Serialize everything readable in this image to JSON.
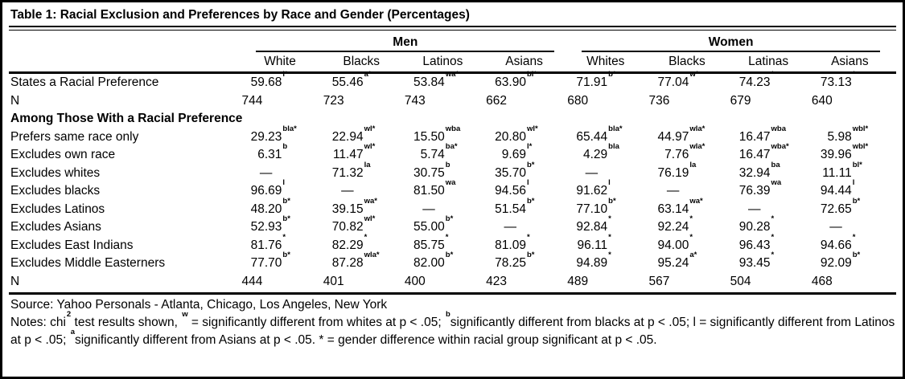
{
  "title": "Table 1: Racial Exclusion and Preferences by Race and Gender (Percentages)",
  "header": {
    "groups": [
      "Men",
      "Women"
    ],
    "columns": [
      "White",
      "Blacks",
      "Latinos",
      "Asians",
      "Whites",
      "Blacks",
      "Latinas",
      "Asians"
    ]
  },
  "rows": [
    {
      "type": "data",
      "label": "States a Racial Preference",
      "cells": [
        {
          "v": "59.68",
          "s": "l*"
        },
        {
          "v": "55.46",
          "s": "a*"
        },
        {
          "v": "53.84",
          "s": "wa*"
        },
        {
          "v": "63.90",
          "s": "bl*"
        },
        {
          "v": "71.91",
          "s": "b*"
        },
        {
          "v": "77.04",
          "s": "w*"
        },
        {
          "v": "74.23",
          "s": "*"
        },
        {
          "v": "73.13",
          "s": "*"
        }
      ]
    },
    {
      "type": "n",
      "label": "N",
      "cells": [
        {
          "v": "744",
          "s": ""
        },
        {
          "v": "723",
          "s": ""
        },
        {
          "v": "743",
          "s": ""
        },
        {
          "v": "662",
          "s": ""
        },
        {
          "v": "680",
          "s": ""
        },
        {
          "v": "736",
          "s": ""
        },
        {
          "v": "679",
          "s": ""
        },
        {
          "v": "640",
          "s": ""
        }
      ]
    },
    {
      "type": "section",
      "label": "Among Those With a Racial Preference"
    },
    {
      "type": "data",
      "label": "Prefers same race only",
      "cells": [
        {
          "v": "29.23",
          "s": "bla*"
        },
        {
          "v": "22.94",
          "s": "wl*"
        },
        {
          "v": "15.50",
          "s": "wba"
        },
        {
          "v": "20.80",
          "s": "wl*"
        },
        {
          "v": "65.44",
          "s": "bla*"
        },
        {
          "v": "44.97",
          "s": "wla*"
        },
        {
          "v": "16.47",
          "s": "wba"
        },
        {
          "v": "5.98",
          "s": "wbl*"
        }
      ]
    },
    {
      "type": "data",
      "label": "Excludes own race",
      "cells": [
        {
          "v": "6.31",
          "s": "b"
        },
        {
          "v": "11.47",
          "s": "wl*"
        },
        {
          "v": "5.74",
          "s": "ba*"
        },
        {
          "v": "9.69",
          "s": "l*"
        },
        {
          "v": "4.29",
          "s": "bla"
        },
        {
          "v": "7.76",
          "s": "wla*"
        },
        {
          "v": "16.47",
          "s": "wba*"
        },
        {
          "v": "39.96",
          "s": "wbl*"
        }
      ]
    },
    {
      "type": "data",
      "label": "Excludes whites",
      "cells": [
        {
          "v": "—",
          "s": ""
        },
        {
          "v": "71.32",
          "s": "la"
        },
        {
          "v": "30.75",
          "s": "b"
        },
        {
          "v": "35.70",
          "s": "b*"
        },
        {
          "v": "—",
          "s": ""
        },
        {
          "v": "76.19",
          "s": "la"
        },
        {
          "v": "32.94",
          "s": "ba"
        },
        {
          "v": "11.11",
          "s": "bl*"
        }
      ]
    },
    {
      "type": "data",
      "label": "Excludes blacks",
      "cells": [
        {
          "v": "96.69",
          "s": "l"
        },
        {
          "v": "—",
          "s": ""
        },
        {
          "v": "81.50",
          "s": "wa"
        },
        {
          "v": "94.56",
          "s": "l"
        },
        {
          "v": "91.62",
          "s": "l"
        },
        {
          "v": "—",
          "s": ""
        },
        {
          "v": "76.39",
          "s": "wa"
        },
        {
          "v": "94.44",
          "s": "l"
        }
      ]
    },
    {
      "type": "data",
      "label": "Excludes Latinos",
      "cells": [
        {
          "v": "48.20",
          "s": "b*"
        },
        {
          "v": "39.15",
          "s": "wa*"
        },
        {
          "v": "—",
          "s": ""
        },
        {
          "v": "51.54",
          "s": "b*"
        },
        {
          "v": "77.10",
          "s": "b*"
        },
        {
          "v": "63.14",
          "s": "wa*"
        },
        {
          "v": "—",
          "s": ""
        },
        {
          "v": "72.65",
          "s": "b*"
        }
      ]
    },
    {
      "type": "data",
      "label": "Excludes Asians",
      "cells": [
        {
          "v": "52.93",
          "s": "b*"
        },
        {
          "v": "70.82",
          "s": "wl*"
        },
        {
          "v": "55.00",
          "s": "b*"
        },
        {
          "v": "—",
          "s": ""
        },
        {
          "v": "92.84",
          "s": "*"
        },
        {
          "v": "92.24",
          "s": "*"
        },
        {
          "v": "90.28",
          "s": "*"
        },
        {
          "v": "—",
          "s": ""
        }
      ]
    },
    {
      "type": "data",
      "label": "Excludes East Indians",
      "cells": [
        {
          "v": "81.76",
          "s": "*"
        },
        {
          "v": "82.29",
          "s": "*"
        },
        {
          "v": "85.75",
          "s": "*"
        },
        {
          "v": "81.09",
          "s": "*"
        },
        {
          "v": "96.11",
          "s": "*"
        },
        {
          "v": "94.00",
          "s": "*"
        },
        {
          "v": "96.43",
          "s": "*"
        },
        {
          "v": "94.66",
          "s": "*"
        }
      ]
    },
    {
      "type": "data",
      "label": "Excludes Middle Easterners",
      "cells": [
        {
          "v": "77.70",
          "s": "b*"
        },
        {
          "v": "87.28",
          "s": "wla*"
        },
        {
          "v": "82.00",
          "s": "b*"
        },
        {
          "v": "78.25",
          "s": "b*"
        },
        {
          "v": "94.89",
          "s": "*"
        },
        {
          "v": "95.24",
          "s": "a*"
        },
        {
          "v": "93.45",
          "s": "*"
        },
        {
          "v": "92.09",
          "s": "b*"
        }
      ]
    },
    {
      "type": "n",
      "label": "N",
      "cells": [
        {
          "v": "444",
          "s": ""
        },
        {
          "v": "401",
          "s": ""
        },
        {
          "v": "400",
          "s": ""
        },
        {
          "v": "423",
          "s": ""
        },
        {
          "v": "489",
          "s": ""
        },
        {
          "v": "567",
          "s": ""
        },
        {
          "v": "504",
          "s": ""
        },
        {
          "v": "468",
          "s": ""
        }
      ]
    }
  ],
  "source": "Source: Yahoo Personals - Atlanta, Chicago, Los Angeles, New York",
  "notes_segments": [
    {
      "t": "Notes: chi"
    },
    {
      "sup": "2"
    },
    {
      "t": " test results shown, "
    },
    {
      "sup": "w"
    },
    {
      "t": " = significantly different from whites at p < .05; "
    },
    {
      "sup": "b"
    },
    {
      "t": "significantly different from blacks at p < .05; l = significantly different from Latinos at p < .05; "
    },
    {
      "sup": "a"
    },
    {
      "t": "significantly different from Asians at p < .05. * = gender difference within racial group significant at p < .05."
    }
  ]
}
